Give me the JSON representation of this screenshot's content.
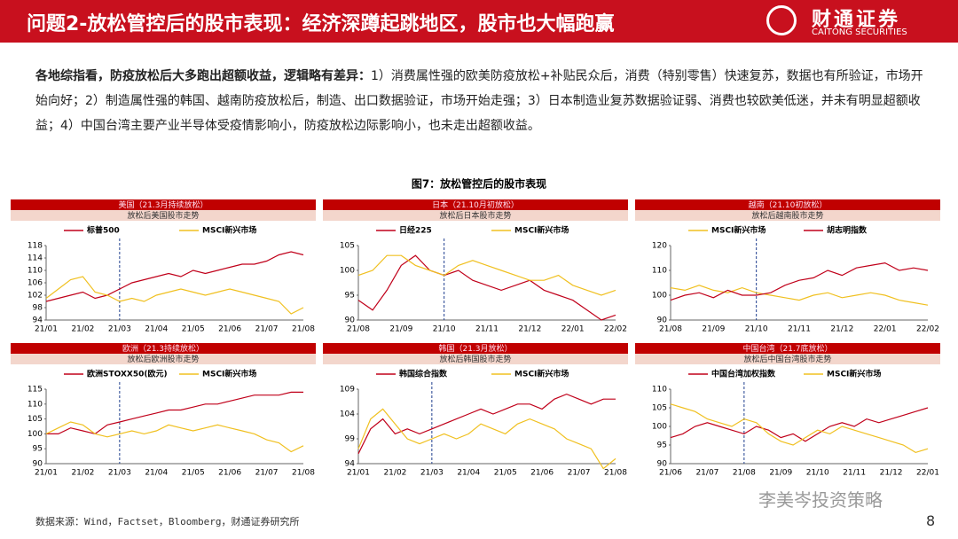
{
  "header": {
    "title": "问题2-放松管控后的股市表现：经济深蹲起跳地区，股市也大幅跑赢",
    "logo": "财通证券",
    "logo_en": "CAITONG SECURITIES"
  },
  "body": {
    "lead": "各地综指看，防疫放松后大多跑出超额收益，逻辑略有差异：",
    "text": "1）消费属性强的欧美防疫放松+补贴民众后，消费（特别零售）快速复苏，数据也有所验证，市场开始向好；2）制造属性强的韩国、越南防疫放松后，制造、出口数据验证，市场开始走强；3）日本制造业复苏数据验证弱、消费也较欧美低迷，并未有明显超额收益；4）中国台湾主要产业半导体受疫情影响小，防疫放松边际影响小，也未走出超额收益。"
  },
  "figure_title": "图7：放松管控后的股市表现",
  "source": "数据来源：Wind，Factset，Bloomberg，财通证券研究所",
  "page_number": "8",
  "watermark": "李美岑投资策略",
  "chart_data": [
    {
      "type": "line",
      "title": "美国（21.3月持续放松）",
      "subtitle": "放松后美国股市走势",
      "event": "21/03",
      "categories": [
        "21/01",
        null,
        null,
        "21/02",
        null,
        null,
        "21/03",
        null,
        null,
        "21/04",
        null,
        null,
        "21/05",
        null,
        null,
        "21/06",
        null,
        null,
        "21/07",
        null,
        null,
        "21/08"
      ],
      "series": [
        {
          "name": "标普500",
          "color": "#c0001a",
          "values": [
            100,
            101,
            102,
            103,
            101,
            102,
            104,
            106,
            107,
            108,
            109,
            108,
            110,
            109,
            110,
            111,
            112,
            112,
            113,
            115,
            116,
            115
          ]
        },
        {
          "name": "MSCI新兴市场",
          "color": "#f0c020",
          "values": [
            101,
            104,
            107,
            108,
            103,
            102,
            100,
            101,
            100,
            102,
            103,
            104,
            103,
            102,
            103,
            104,
            103,
            102,
            101,
            100,
            96,
            98
          ]
        }
      ],
      "ylim": [
        94,
        118
      ],
      "yticks": [
        94,
        98,
        102,
        106,
        110,
        114,
        118
      ]
    },
    {
      "type": "line",
      "title": "日本（21.10月初放松）",
      "subtitle": "放松后日本股市走势",
      "event": "21/10",
      "categories": [
        "21/08",
        null,
        null,
        "21/09",
        null,
        null,
        "21/10",
        null,
        null,
        "21/11",
        null,
        null,
        "21/12",
        null,
        null,
        "22/01",
        null,
        null,
        "22/02"
      ],
      "series": [
        {
          "name": "日经225",
          "color": "#c0001a",
          "values": [
            94,
            92,
            96,
            101,
            103,
            100,
            99,
            100,
            98,
            97,
            96,
            97,
            98,
            96,
            95,
            94,
            92,
            90,
            91
          ]
        },
        {
          "name": "MSCI新兴市场",
          "color": "#f0c020",
          "values": [
            99,
            100,
            103,
            103,
            101,
            100,
            99,
            101,
            102,
            101,
            100,
            99,
            98,
            98,
            99,
            97,
            96,
            95,
            96
          ]
        }
      ],
      "ylim": [
        90,
        105
      ],
      "yticks": [
        90,
        95,
        100,
        105
      ]
    },
    {
      "type": "line",
      "title": "越南（21.10初放松）",
      "subtitle": "放松后越南股市走势",
      "event": "21/10",
      "categories": [
        "21/08",
        null,
        null,
        "21/09",
        null,
        null,
        "21/10",
        null,
        null,
        "21/11",
        null,
        null,
        "21/12",
        null,
        null,
        "22/01",
        null,
        null,
        "22/02"
      ],
      "series": [
        {
          "name": "MSCI新兴市场",
          "color": "#f0c020",
          "values": [
            103,
            102,
            104,
            102,
            101,
            103,
            101,
            100,
            99,
            98,
            100,
            101,
            99,
            100,
            101,
            100,
            98,
            97,
            96
          ]
        },
        {
          "name": "胡志明指数",
          "color": "#c0001a",
          "values": [
            98,
            100,
            101,
            99,
            102,
            100,
            100,
            101,
            104,
            106,
            107,
            110,
            108,
            111,
            112,
            113,
            110,
            111,
            110
          ]
        }
      ],
      "ylim": [
        90,
        120
      ],
      "yticks": [
        90,
        100,
        110,
        120
      ]
    },
    {
      "type": "line",
      "title": "欧洲（21.3持续放松）",
      "subtitle": "放松后欧洲股市走势",
      "event": "21/03",
      "categories": [
        "21/01",
        null,
        null,
        "21/02",
        null,
        null,
        "21/03",
        null,
        null,
        "21/04",
        null,
        null,
        "21/05",
        null,
        null,
        "21/06",
        null,
        null,
        "21/07",
        null,
        null,
        "21/08"
      ],
      "series": [
        {
          "name": "欧洲STOXX50(欧元)",
          "color": "#c0001a",
          "values": [
            100,
            100,
            102,
            101,
            100,
            103,
            104,
            105,
            106,
            107,
            108,
            108,
            109,
            110,
            110,
            111,
            112,
            113,
            113,
            113,
            114,
            114
          ]
        },
        {
          "name": "MSCI新兴市场",
          "color": "#f0c020",
          "values": [
            100,
            102,
            104,
            103,
            100,
            99,
            100,
            101,
            100,
            101,
            103,
            102,
            101,
            102,
            103,
            102,
            101,
            100,
            98,
            97,
            94,
            96
          ]
        }
      ],
      "ylim": [
        90,
        115
      ],
      "yticks": [
        90,
        95,
        100,
        105,
        110,
        115
      ]
    },
    {
      "type": "line",
      "title": "韩国（21.3月放松）",
      "subtitle": "放松后韩国股市走势",
      "event": "21/03",
      "categories": [
        "21/01",
        null,
        null,
        "21/02",
        null,
        null,
        "21/03",
        null,
        null,
        "21/04",
        null,
        null,
        "21/05",
        null,
        null,
        "21/06",
        null,
        null,
        "21/07",
        null,
        null,
        "21/08"
      ],
      "series": [
        {
          "name": "韩国综合指数",
          "color": "#c0001a",
          "values": [
            96,
            101,
            103,
            100,
            101,
            100,
            101,
            102,
            103,
            104,
            105,
            104,
            105,
            106,
            106,
            105,
            107,
            108,
            107,
            106,
            107,
            107
          ]
        },
        {
          "name": "MSCI新兴市场",
          "color": "#f0c020",
          "values": [
            97,
            103,
            105,
            102,
            99,
            98,
            99,
            100,
            99,
            100,
            102,
            101,
            100,
            102,
            103,
            102,
            101,
            99,
            98,
            97,
            93,
            95
          ]
        }
      ],
      "ylim": [
        94,
        109
      ],
      "yticks": [
        94,
        99,
        104,
        109
      ]
    },
    {
      "type": "line",
      "title": "中国台湾（21.7底放松）",
      "subtitle": "放松后中国台湾股市走势",
      "event": "21/08",
      "categories": [
        "21/06",
        null,
        null,
        "21/07",
        null,
        null,
        "21/08",
        null,
        null,
        "21/09",
        null,
        null,
        "21/10",
        null,
        null,
        "21/11",
        null,
        null,
        "21/12",
        null,
        null,
        "22/01"
      ],
      "series": [
        {
          "name": "中国台湾加权指数",
          "color": "#c0001a",
          "values": [
            97,
            98,
            100,
            101,
            100,
            99,
            98,
            100,
            99,
            97,
            98,
            96,
            98,
            100,
            101,
            100,
            102,
            101,
            102,
            103,
            104,
            105
          ]
        },
        {
          "name": "MSCI新兴市场",
          "color": "#f0c020",
          "values": [
            106,
            105,
            104,
            102,
            101,
            100,
            102,
            101,
            98,
            96,
            95,
            97,
            99,
            98,
            100,
            99,
            98,
            97,
            96,
            95,
            93,
            94
          ]
        }
      ],
      "ylim": [
        90,
        110
      ],
      "yticks": [
        90,
        95,
        100,
        105,
        110
      ]
    }
  ]
}
